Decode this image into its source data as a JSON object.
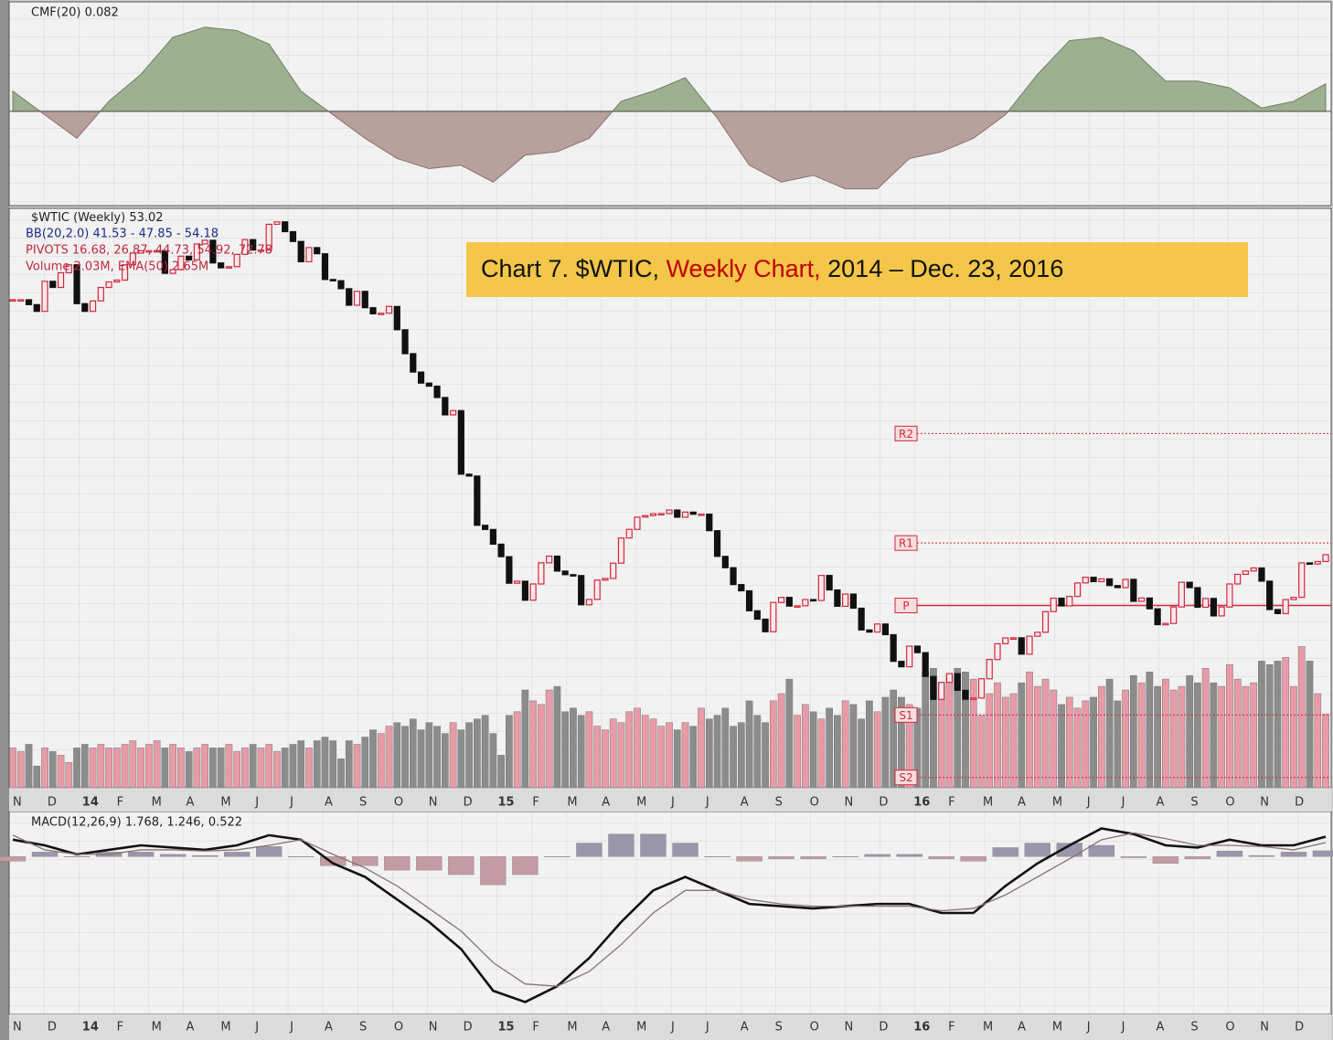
{
  "chart_data": {
    "type": "candlestick",
    "title": {
      "prefix": "Chart 7. $WTIC,",
      "highlight": "Weekly Chart,",
      "suffix": "2014 – Dec. 23, 2016"
    },
    "months": [
      "N",
      "D",
      "14",
      "F",
      "M",
      "A",
      "M",
      "J",
      "J",
      "A",
      "S",
      "O",
      "N",
      "D",
      "15",
      "F",
      "M",
      "A",
      "M",
      "J",
      "J",
      "A",
      "S",
      "O",
      "N",
      "D",
      "16",
      "F",
      "M",
      "A",
      "M",
      "J",
      "J",
      "A",
      "S",
      "O",
      "N",
      "D"
    ],
    "price": {
      "name": "$WTIC (Weekly)",
      "ylim": [
        15,
        109.5
      ],
      "values": [
        94.6,
        94.6,
        93.8,
        92.7,
        97.6,
        96.6,
        99.0,
        100.3,
        93.96,
        92.7,
        94.4,
        96.6,
        97.5,
        97.8,
        100.3,
        102.2,
        102.6,
        102.6,
        102.6,
        98.9,
        99.5,
        101.7,
        101.1,
        103.7,
        104.3,
        100.6,
        99.8,
        99.99,
        102.0,
        104.4,
        102.7,
        102.7,
        106.9,
        107.3,
        105.7,
        104.1,
        100.8,
        103.1,
        102.1,
        97.9,
        97.7,
        96.4,
        93.7,
        95.96,
        93.3,
        92.3,
        92.4,
        93.5,
        89.7,
        85.8,
        82.8,
        81.0,
        80.5,
        78.65,
        75.82,
        76.51,
        66.15,
        65.84,
        57.81,
        57.13,
        54.73,
        52.69,
        48.36,
        48.69,
        45.59,
        48.24,
        51.69,
        52.78,
        50.34,
        49.76,
        49.61,
        44.84,
        45.72,
        48.87,
        49.14,
        51.64,
        55.74,
        57.15,
        59.15,
        59.39,
        59.69,
        59.72,
        60.3,
        59.13,
        59.96,
        59.61,
        59.63,
        56.93,
        52.74,
        50.89,
        48.14,
        47.12,
        43.87,
        42.5,
        40.45,
        45.22,
        46.05,
        44.63,
        44.68,
        45.7,
        45.54,
        49.63,
        47.26,
        44.6,
        46.59,
        44.29,
        40.74,
        40.39,
        41.71,
        39.97,
        35.62,
        34.73,
        38.1,
        37.04,
        33.16,
        29.42,
        32.19,
        33.62,
        30.89,
        29.44,
        29.64,
        32.78,
        35.92,
        38.5,
        39.44,
        39.46,
        36.79,
        39.72,
        40.36,
        43.73,
        45.92,
        44.66,
        46.21,
        48.41,
        49.33,
        48.62,
        49.07,
        47.98,
        47.64,
        48.99,
        45.41,
        45.95,
        44.19,
        41.6,
        41.8,
        44.49,
        48.52,
        47.64,
        44.44,
        45.88,
        43.03,
        44.48,
        48.24,
        49.81,
        50.35,
        50.85,
        48.7,
        44.07,
        43.41,
        45.69,
        46.06,
        51.68,
        51.5,
        51.9,
        53.02
      ],
      "up_color": "#d0283c",
      "down_color": "#111111"
    },
    "legend": {
      "bb": "BB(20,2.0) 41.53 - 47.85 - 54.18",
      "pivots": "PIVOTS 16.68, 26.87, 44.73, 54.92, 72.78",
      "volume": "Volume 2.03M, EMA(50) 2.65M",
      "cmf": "CMF(20) 0.082",
      "macd": "MACD(12,26,9) 1.768, 1.246, 0.522"
    },
    "pivots": {
      "labels": [
        "S2",
        "S1",
        "P",
        "R1",
        "R2"
      ],
      "values": [
        16.68,
        26.87,
        44.73,
        54.92,
        72.78
      ],
      "color": "#d0283c"
    },
    "volume": {
      "ylim": [
        0,
        16
      ],
      "values": [
        1.1,
        1.0,
        1.2,
        0.6,
        1.1,
        1.0,
        0.9,
        0.7,
        1.1,
        1.2,
        1.1,
        1.2,
        1.1,
        1.1,
        1.2,
        1.3,
        1.1,
        1.2,
        1.3,
        1.1,
        1.2,
        1.1,
        1.0,
        1.1,
        1.2,
        1.1,
        1.1,
        1.2,
        1.0,
        1.1,
        1.2,
        1.1,
        1.2,
        1.0,
        1.1,
        1.2,
        1.3,
        1.1,
        1.3,
        1.4,
        1.3,
        0.8,
        1.3,
        1.2,
        1.4,
        1.6,
        1.5,
        1.7,
        1.8,
        1.7,
        1.9,
        1.6,
        1.8,
        1.7,
        1.5,
        1.8,
        1.6,
        1.8,
        1.9,
        2.0,
        1.5,
        0.9,
        2.0,
        2.1,
        2.7,
        2.4,
        2.3,
        2.7,
        2.8,
        2.1,
        2.2,
        2.0,
        2.1,
        1.7,
        1.6,
        1.9,
        1.8,
        2.1,
        2.2,
        2.0,
        1.9,
        1.7,
        1.8,
        1.6,
        1.8,
        1.7,
        2.2,
        1.9,
        2.0,
        2.2,
        1.7,
        1.8,
        2.4,
        2.0,
        1.8,
        2.4,
        2.6,
        3.0,
        2.0,
        2.3,
        2.1,
        1.9,
        2.2,
        2.0,
        2.4,
        2.3,
        1.9,
        2.4,
        2.1,
        2.5,
        2.7,
        2.5,
        2.3,
        2.2,
        3.2,
        3.3,
        2.9,
        3.1,
        3.3,
        3.2,
        3.0,
        2.0,
        2.6,
        2.9,
        2.5,
        2.6,
        2.9,
        3.2,
        2.8,
        3.0,
        2.7,
        2.3,
        2.5,
        2.2,
        2.4,
        2.5,
        2.8,
        3.0,
        2.4,
        2.7,
        3.1,
        2.9,
        3.2,
        2.8,
        3.0,
        2.7,
        2.8,
        3.1,
        2.9,
        3.3,
        2.9,
        2.8,
        3.4,
        3.0,
        2.8,
        2.9,
        3.5,
        3.4,
        3.5,
        3.6,
        2.8,
        3.9,
        3.5,
        2.6,
        2.03
      ],
      "up_color": "#e89aa6",
      "down_color": "#8c8c8c"
    },
    "cmf": {
      "ylim": [
        -0.28,
        0.32
      ],
      "values": [
        0.06,
        -0.01,
        -0.08,
        0.03,
        0.11,
        0.22,
        0.25,
        0.24,
        0.2,
        0.06,
        -0.01,
        -0.08,
        -0.14,
        -0.17,
        -0.16,
        -0.21,
        -0.13,
        -0.12,
        -0.08,
        0.03,
        0.06,
        0.1,
        -0.02,
        -0.16,
        -0.21,
        -0.19,
        -0.23,
        -0.23,
        -0.14,
        -0.12,
        -0.08,
        -0.01,
        0.11,
        0.21,
        0.22,
        0.18,
        0.09,
        0.09,
        0.07,
        0.01,
        0.03,
        0.082
      ],
      "pos_color": "#9db08f",
      "neg_color": "#b8a09c"
    },
    "macd": {
      "ylim": [
        -14,
        4
      ],
      "series": [
        {
          "name": "MACD",
          "color": "#111111",
          "values": [
            1.5,
            1.0,
            0.2,
            0.6,
            1.0,
            0.8,
            0.6,
            1.0,
            1.9,
            1.5,
            -0.6,
            -1.8,
            -3.8,
            -5.8,
            -8.2,
            -11.9,
            -12.9,
            -11.5,
            -9.0,
            -5.8,
            -3.0,
            -1.8,
            -3.0,
            -4.2,
            -4.4,
            -4.6,
            -4.4,
            -4.2,
            -4.2,
            -5.0,
            -5.0,
            -2.6,
            -0.6,
            1.0,
            2.5,
            2.0,
            1.0,
            0.8,
            1.5,
            1.0,
            1.0,
            1.768
          ]
        },
        {
          "name": "Signal",
          "color": "#8a7070",
          "values": [
            1.9,
            0.6,
            0.2,
            0.2,
            0.6,
            0.6,
            0.5,
            0.6,
            1.0,
            1.5,
            0.2,
            -1.0,
            -2.6,
            -4.6,
            -6.6,
            -9.4,
            -11.3,
            -11.5,
            -10.2,
            -7.8,
            -5.0,
            -3.0,
            -3.0,
            -3.8,
            -4.2,
            -4.4,
            -4.4,
            -4.4,
            -4.4,
            -4.8,
            -4.6,
            -3.4,
            -1.8,
            -0.2,
            1.5,
            2.1,
            1.6,
            1.0,
            1.0,
            0.9,
            0.6,
            1.246
          ]
        }
      ],
      "histogram": [
        -0.4,
        0.4,
        0,
        0.4,
        0.4,
        0.2,
        0.1,
        0.4,
        0.9,
        0,
        -0.8,
        -0.8,
        -1.2,
        -1.2,
        -1.6,
        -2.5,
        -1.6,
        0,
        1.2,
        2.0,
        2.0,
        1.2,
        0,
        -0.4,
        -0.2,
        -0.2,
        0,
        0.2,
        0.2,
        -0.2,
        -0.4,
        0.8,
        1.2,
        1.2,
        1.0,
        -0.1,
        -0.6,
        -0.2,
        0.5,
        0.1,
        0.4,
        0.522
      ],
      "hist_pos_color": "#9a96ac",
      "hist_neg_color": "#c49aa4"
    }
  }
}
